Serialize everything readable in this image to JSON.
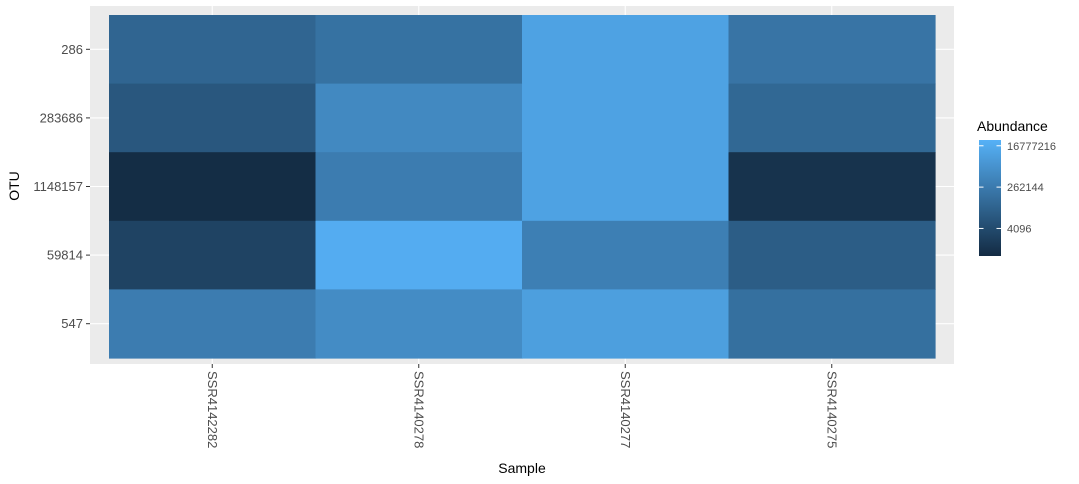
{
  "chart_data": {
    "type": "heatmap",
    "xlabel": "Sample",
    "ylabel": "OTU",
    "x_categories": [
      "SSR4142282",
      "SSR4140278",
      "SSR4140277",
      "SSR4140275"
    ],
    "y_categories": [
      "286",
      "283686",
      "1148157",
      "59814",
      "547"
    ],
    "value_scale": "log2",
    "values": [
      [
        40000,
        120000,
        8000000,
        150000
      ],
      [
        12000,
        900000,
        8000000,
        50000
      ],
      [
        300,
        300000,
        8000000,
        500
      ],
      [
        2000,
        20000000,
        400000,
        20000
      ],
      [
        300000,
        1200000,
        6000000,
        100000
      ]
    ],
    "legend": {
      "title": "Abundance",
      "position": "right",
      "breaks": [
        4096,
        262144,
        16777216
      ],
      "break_labels": [
        "4096",
        "262144",
        "16777216"
      ],
      "range": [
        256,
        30000000
      ],
      "low_color": "#132B43",
      "high_color": "#56B1F7"
    },
    "grid": true,
    "panel_background": "#EBEBEB"
  }
}
